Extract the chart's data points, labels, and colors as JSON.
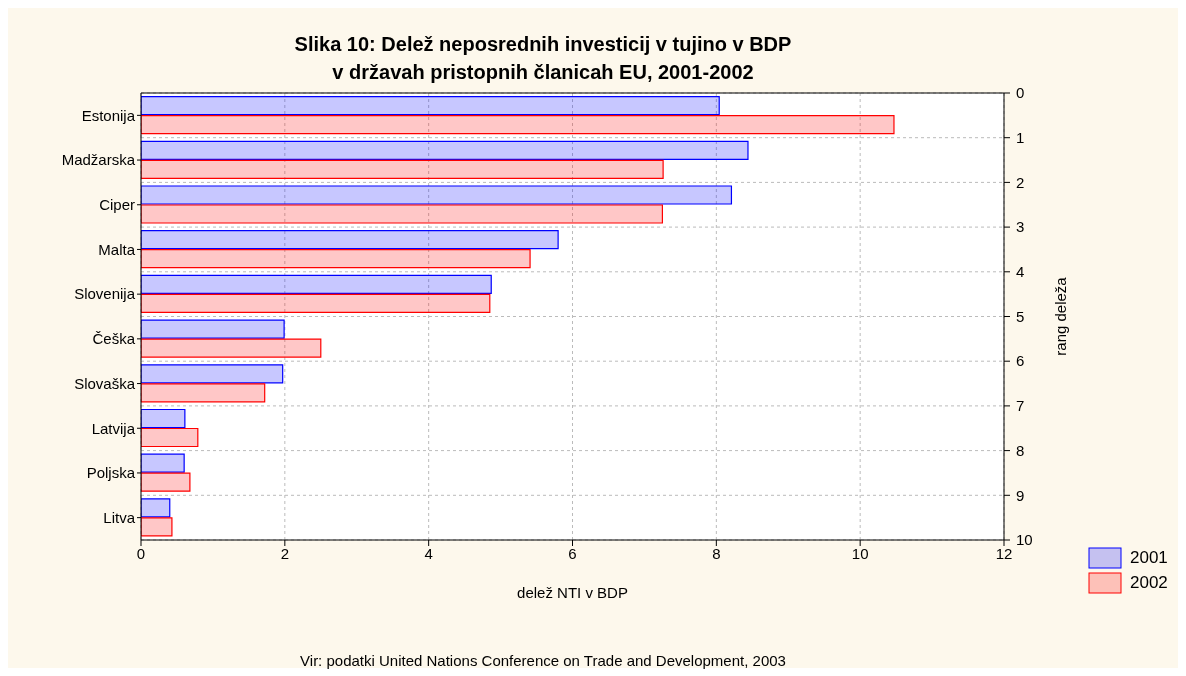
{
  "chart_data": {
    "type": "bar",
    "orientation": "horizontal",
    "title": "Slika 10: Delež neposrednih investicij v tujino v BDP\nv državah pristopnih članicah EU, 2001-2002",
    "xlabel": "delež NTI v BDP",
    "y2label": "rang deleža",
    "categories": [
      "Estonija",
      "Madžarska",
      "Ciper",
      "Malta",
      "Slovenija",
      "Češka",
      "Slovaška",
      "Latvija",
      "Poljska",
      "Litva"
    ],
    "series": [
      {
        "name": "2001",
        "color": "#0000ff",
        "values": [
          8.04,
          8.44,
          8.21,
          5.8,
          4.87,
          1.99,
          1.97,
          0.61,
          0.6,
          0.4
        ]
      },
      {
        "name": "2002",
        "color": "#ff0000",
        "values": [
          10.47,
          7.26,
          7.25,
          5.41,
          4.85,
          2.5,
          1.72,
          0.79,
          0.68,
          0.43
        ]
      }
    ],
    "xlim": [
      0,
      12
    ],
    "xticks": [
      0,
      2,
      4,
      6,
      8,
      10,
      12
    ],
    "y2lim": [
      10,
      0
    ],
    "y2ticks": [
      0,
      1,
      2,
      3,
      4,
      5,
      6,
      7,
      8,
      9,
      10
    ],
    "grid": true,
    "legend": "bottom right",
    "annotations": [
      "Vir: podatki  United Nations Conference on Trade and Development, 2003"
    ]
  }
}
